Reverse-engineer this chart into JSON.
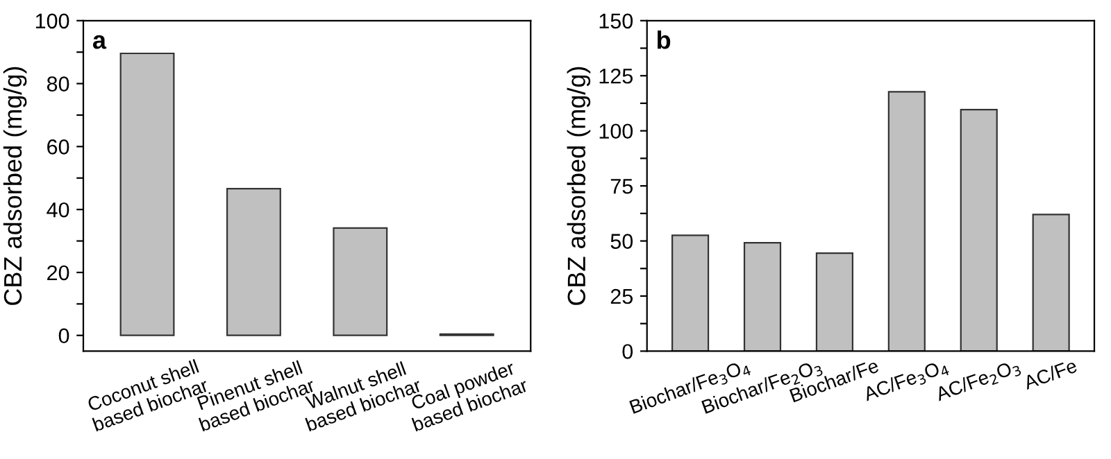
{
  "chart_data": [
    {
      "type": "bar",
      "annotations": [
        "a"
      ],
      "ylabel": "CBZ adsorbed (mg/g)",
      "categories": [
        "Coconut shell\nbased biochar",
        "Pinenut shell\nbased biochar",
        "Walnut shell\nbased biochar",
        "Coal powder\nbased biochar"
      ],
      "values": [
        89.6,
        46.6,
        34.1,
        0.4
      ],
      "color": "#c0c0c0",
      "ylim": [
        -5,
        100
      ],
      "yticks": [
        0,
        {
          "value": 10,
          "label": null
        },
        20,
        {
          "value": 30,
          "label": null
        },
        40,
        {
          "value": 50,
          "label": null
        },
        60,
        {
          "value": 70,
          "label": null
        },
        80,
        {
          "value": 90,
          "label": null
        },
        100
      ],
      "grid": false
    },
    {
      "type": "bar",
      "annotations": [
        "b"
      ],
      "ylabel": "CBZ adsorbed (mg/g)",
      "categories": [
        "Biochar/Fe$_{3}$O$_{4}$",
        "Biochar/Fe$_{2}$O$_{3}$",
        "Biochar/Fe",
        "AC/Fe$_{3}$O$_{4}$",
        "AC/Fe$_{2}$O$_{3}$",
        "AC/Fe"
      ],
      "values": [
        52.6,
        49.2,
        44.5,
        117.7,
        109.6,
        62.0
      ],
      "color": "#c0c0c0",
      "ylim": [
        0,
        150
      ],
      "yticks": [
        0,
        {
          "value": 12.5,
          "label": null
        },
        25,
        {
          "value": 37.5,
          "label": null
        },
        50,
        {
          "value": 62.5,
          "label": null
        },
        75,
        {
          "value": 87.5,
          "label": null
        },
        100,
        {
          "value": 112.5,
          "label": null
        },
        125,
        {
          "value": 137.5,
          "label": null
        },
        150
      ],
      "grid": false
    }
  ]
}
